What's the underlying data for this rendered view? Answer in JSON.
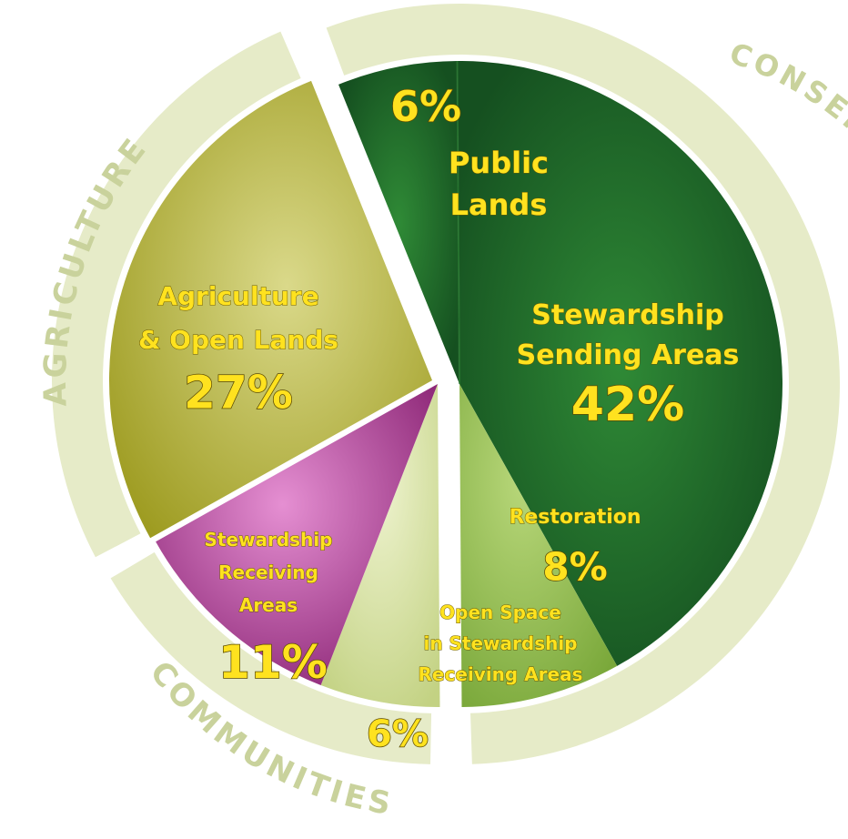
{
  "chart_data": {
    "type": "pie",
    "title": "",
    "unit": "%",
    "slices": [
      {
        "key": "public",
        "label_lines": [
          "Public",
          "Lands"
        ],
        "value": 6,
        "value_label": "6%",
        "color": "#1f6b2a",
        "group": "conservation"
      },
      {
        "key": "sending",
        "label_lines": [
          "Stewardship",
          "Sending Areas"
        ],
        "value": 42,
        "value_label": "42%",
        "color": "#1f6b2a",
        "group": "conservation"
      },
      {
        "key": "restoration",
        "label_lines": [
          "Restoration"
        ],
        "value": 8,
        "value_label": "8%",
        "color": "#8cb84a",
        "group": "conservation"
      },
      {
        "key": "openspace",
        "label_lines": [
          "Open Space",
          "in Stewardship",
          "Receiving Areas"
        ],
        "value": 6,
        "value_label": "6%",
        "color": "#d3df9c",
        "group": "communities"
      },
      {
        "key": "receiving",
        "label_lines": [
          "Stewardship",
          "Receiving",
          "Areas"
        ],
        "value": 11,
        "value_label": "11%",
        "color": "#a83a94",
        "group": "communities"
      },
      {
        "key": "agriculture",
        "label_lines": [
          "Agriculture",
          "& Open Lands"
        ],
        "value": 27,
        "value_label": "27%",
        "color": "#b3b12a",
        "group": "agriculture"
      }
    ],
    "groups": [
      {
        "key": "conservation",
        "label": "CONSERVATION & AGRICULTURE"
      },
      {
        "key": "communities",
        "label": "COMMUNITIES"
      },
      {
        "key": "agriculture",
        "label": "AGRICULTURE"
      }
    ],
    "ring_color": "#e6ebc8",
    "label_color": "#ffe21f"
  }
}
